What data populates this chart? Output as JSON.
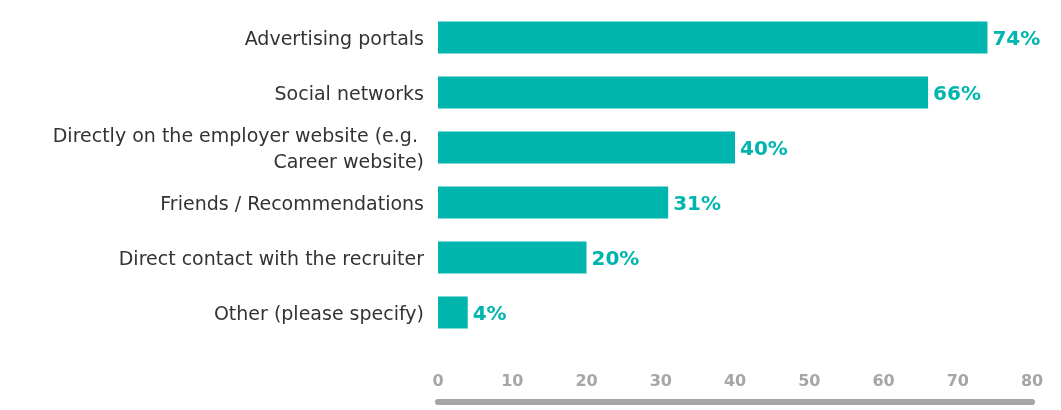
{
  "chart_data": {
    "type": "bar",
    "orientation": "horizontal",
    "categories": [
      "Advertising portals",
      "Social networks",
      "Directly on the employer website (e.g. Career website)",
      "Friends / Recommendations",
      "Direct contact with the recruiter",
      "Other (please specify)"
    ],
    "values": [
      74,
      66,
      40,
      31,
      20,
      4
    ],
    "color": "#00b5ad",
    "value_labels": [
      "74%",
      "66%",
      "40%",
      "31%",
      "20%",
      "4%"
    ],
    "xlim": [
      0,
      80
    ],
    "xticks": [
      0,
      10,
      20,
      30,
      40,
      50,
      60,
      70,
      80
    ],
    "grid": false
  }
}
